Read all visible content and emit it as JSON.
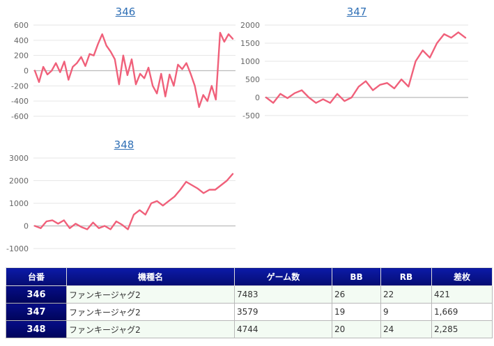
{
  "charts": [
    {
      "title": "346"
    },
    {
      "title": "347"
    },
    {
      "title": "348"
    }
  ],
  "chart_data": [
    {
      "type": "line",
      "title": "346",
      "ylim": [
        -600,
        600
      ],
      "yticks": [
        600,
        400,
        200,
        0,
        -200,
        -400,
        -600
      ],
      "color": "#f0607a",
      "values": [
        0,
        -150,
        50,
        -50,
        0,
        100,
        -20,
        120,
        -120,
        50,
        100,
        180,
        60,
        220,
        200,
        350,
        480,
        330,
        250,
        150,
        -180,
        200,
        -60,
        150,
        -180,
        -40,
        -100,
        40,
        -200,
        -300,
        -40,
        -340,
        -50,
        -200,
        80,
        20,
        100,
        -40,
        -200,
        -480,
        -320,
        -400,
        -200,
        -380,
        500,
        380,
        480,
        420
      ]
    },
    {
      "type": "line",
      "title": "347",
      "ylim": [
        -500,
        2000
      ],
      "yticks": [
        2000,
        1500,
        1000,
        500,
        0,
        -500
      ],
      "color": "#f0607a",
      "values": [
        0,
        -150,
        100,
        -20,
        120,
        200,
        0,
        -150,
        -50,
        -150,
        100,
        -100,
        0,
        300,
        450,
        200,
        350,
        400,
        250,
        500,
        300,
        1000,
        1300,
        1100,
        1500,
        1750,
        1650,
        1800,
        1650
      ]
    },
    {
      "type": "line",
      "title": "348",
      "ylim": [
        -1000,
        3000
      ],
      "yticks": [
        3000,
        2000,
        1000,
        0,
        -1000
      ],
      "color": "#f0607a",
      "values": [
        0,
        -100,
        200,
        250,
        100,
        250,
        -100,
        100,
        -50,
        -150,
        150,
        -100,
        0,
        -150,
        200,
        50,
        -150,
        500,
        700,
        500,
        1000,
        1100,
        900,
        1100,
        1300,
        1600,
        1950,
        1800,
        1650,
        1450,
        1600,
        1600,
        1800,
        2000,
        2300
      ]
    }
  ],
  "table": {
    "headers": [
      "台番",
      "機種名",
      "ゲーム数",
      "BB",
      "RB",
      "差枚"
    ],
    "rows": [
      [
        "346",
        "ファンキージャグ2",
        "7483",
        "26",
        "22",
        "421"
      ],
      [
        "347",
        "ファンキージャグ2",
        "3579",
        "19",
        "9",
        "1,669"
      ],
      [
        "348",
        "ファンキージャグ2",
        "4744",
        "20",
        "24",
        "2,285"
      ]
    ]
  }
}
